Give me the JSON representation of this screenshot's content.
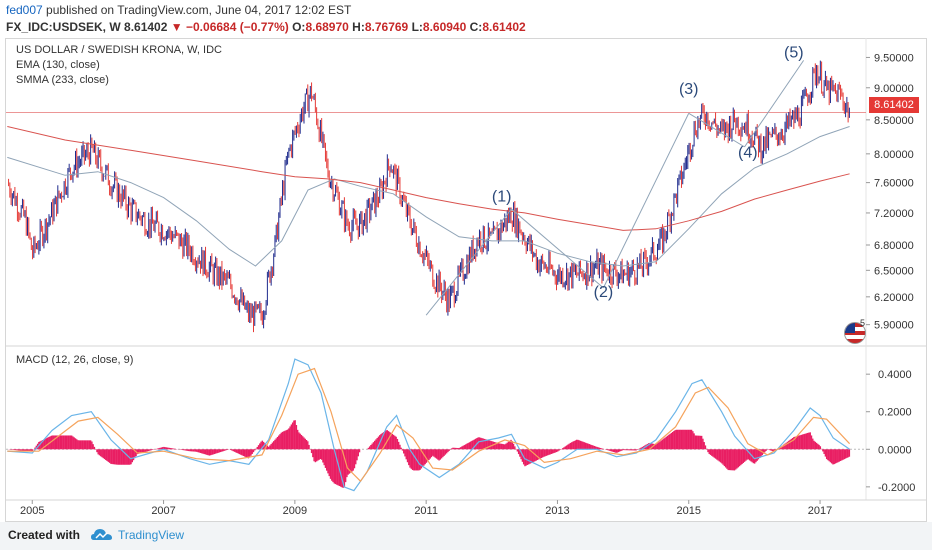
{
  "header": {
    "author": "fed007",
    "published_text": "published on TradingView.com, June 04, 2017 12:02 EST",
    "symbol": "FX_IDC:USDSEK, W",
    "last": "8.61402",
    "change": "−0.06684 (−0.77%)",
    "o_label": "O:",
    "o_value": "8.68970",
    "h_label": "H:",
    "h_value": "8.76769",
    "l_label": "L:",
    "l_value": "8.60940",
    "c_label": "C:",
    "c_value": "8.61402"
  },
  "legend": {
    "series_title": "US DOLLAR / SWEDISH KRONA, W, IDC",
    "ema": "EMA (130, close)",
    "smma": "SMMA (233, close)",
    "macd": "MACD (12, 26, close, 9)"
  },
  "price_box": "8.61402",
  "flag_badge": "5",
  "footer": {
    "created_with": "Created with",
    "brand": "TradingView"
  },
  "colors": {
    "up_candle": "#1e2a8c",
    "down_candle": "#e53935",
    "ema_line": "#90a4b7",
    "smma_line": "#d9534f",
    "macd_line": "#6bb5e8",
    "signal_line": "#f5a35c",
    "histogram": "#e91e63",
    "wave_line": "#90a4b7",
    "wave_label": "#2c4a7a"
  },
  "chart_data": [
    {
      "type": "candlestick",
      "title": "US DOLLAR / SWEDISH KRONA, W, IDC",
      "x_ticks": [
        "2005",
        "2007",
        "2009",
        "2011",
        "2013",
        "2015",
        "2017"
      ],
      "y_ticks": [
        "5.90000",
        "6.20000",
        "6.50000",
        "6.80000",
        "7.20000",
        "7.60000",
        "8.00000",
        "8.50000",
        "9.00000",
        "9.50000"
      ],
      "y_scale": "log",
      "ylim": [
        5.7,
        9.8
      ],
      "xlim": [
        2004.6,
        2017.7
      ],
      "close_path": [
        [
          2004.62,
          7.6
        ],
        [
          2004.9,
          7.1
        ],
        [
          2005.0,
          6.7
        ],
        [
          2005.3,
          7.2
        ],
        [
          2005.6,
          7.8
        ],
        [
          2005.9,
          8.05
        ],
        [
          2006.2,
          7.6
        ],
        [
          2006.5,
          7.25
        ],
        [
          2006.8,
          7.05
        ],
        [
          2007.0,
          7.0
        ],
        [
          2007.4,
          6.75
        ],
        [
          2007.8,
          6.45
        ],
        [
          2008.0,
          6.35
        ],
        [
          2008.3,
          6.0
        ],
        [
          2008.5,
          6.0
        ],
        [
          2008.7,
          6.8
        ],
        [
          2008.9,
          8.0
        ],
        [
          2009.1,
          8.6
        ],
        [
          2009.25,
          8.95
        ],
        [
          2009.5,
          7.75
        ],
        [
          2009.8,
          7.05
        ],
        [
          2010.0,
          7.05
        ],
        [
          2010.3,
          7.45
        ],
        [
          2010.45,
          7.9
        ],
        [
          2010.7,
          7.2
        ],
        [
          2010.9,
          6.8
        ],
        [
          2011.1,
          6.45
        ],
        [
          2011.35,
          6.15
        ],
        [
          2011.6,
          6.55
        ],
        [
          2011.8,
          6.9
        ],
        [
          2012.0,
          6.85
        ],
        [
          2012.3,
          7.2
        ],
        [
          2012.5,
          6.9
        ],
        [
          2012.7,
          6.6
        ],
        [
          2013.0,
          6.45
        ],
        [
          2013.3,
          6.45
        ],
        [
          2013.6,
          6.55
        ],
        [
          2013.8,
          6.5
        ],
        [
          2014.0,
          6.45
        ],
        [
          2014.3,
          6.55
        ],
        [
          2014.6,
          6.85
        ],
        [
          2014.9,
          7.7
        ],
        [
          2015.1,
          8.4
        ],
        [
          2015.25,
          8.6
        ],
        [
          2015.5,
          8.3
        ],
        [
          2015.7,
          8.5
        ],
        [
          2015.9,
          8.4
        ],
        [
          2016.1,
          8.1
        ],
        [
          2016.3,
          8.25
        ],
        [
          2016.5,
          8.4
        ],
        [
          2016.7,
          8.6
        ],
        [
          2016.95,
          9.3
        ],
        [
          2017.1,
          8.95
        ],
        [
          2017.3,
          8.9
        ],
        [
          2017.45,
          8.61
        ]
      ]
    },
    {
      "type": "line",
      "title": "EMA (130, close)",
      "points": [
        [
          2004.62,
          7.95
        ],
        [
          2005.5,
          7.7
        ],
        [
          2006.0,
          7.75
        ],
        [
          2006.5,
          7.6
        ],
        [
          2007.0,
          7.4
        ],
        [
          2007.5,
          7.1
        ],
        [
          2008.0,
          6.75
        ],
        [
          2008.4,
          6.55
        ],
        [
          2008.8,
          6.85
        ],
        [
          2009.2,
          7.5
        ],
        [
          2009.6,
          7.65
        ],
        [
          2010.0,
          7.55
        ],
        [
          2010.5,
          7.45
        ],
        [
          2011.0,
          7.15
        ],
        [
          2011.5,
          6.9
        ],
        [
          2012.0,
          6.85
        ],
        [
          2012.5,
          6.85
        ],
        [
          2013.0,
          6.7
        ],
        [
          2013.5,
          6.6
        ],
        [
          2014.0,
          6.55
        ],
        [
          2014.5,
          6.6
        ],
        [
          2015.0,
          7.0
        ],
        [
          2015.5,
          7.45
        ],
        [
          2016.0,
          7.8
        ],
        [
          2016.5,
          8.0
        ],
        [
          2017.0,
          8.25
        ],
        [
          2017.45,
          8.4
        ]
      ]
    },
    {
      "type": "line",
      "title": "SMMA (233, close)",
      "points": [
        [
          2004.62,
          8.4
        ],
        [
          2005.5,
          8.2
        ],
        [
          2006.5,
          8.05
        ],
        [
          2007.5,
          7.9
        ],
        [
          2008.5,
          7.75
        ],
        [
          2009.0,
          7.68
        ],
        [
          2009.5,
          7.65
        ],
        [
          2010.0,
          7.6
        ],
        [
          2010.5,
          7.5
        ],
        [
          2011.0,
          7.4
        ],
        [
          2011.5,
          7.32
        ],
        [
          2012.0,
          7.25
        ],
        [
          2012.5,
          7.2
        ],
        [
          2013.0,
          7.12
        ],
        [
          2013.5,
          7.05
        ],
        [
          2014.0,
          6.98
        ],
        [
          2014.5,
          7.0
        ],
        [
          2015.0,
          7.1
        ],
        [
          2015.5,
          7.22
        ],
        [
          2016.0,
          7.38
        ],
        [
          2016.5,
          7.5
        ],
        [
          2017.0,
          7.62
        ],
        [
          2017.45,
          7.72
        ]
      ]
    },
    {
      "type": "annotation",
      "title": "Wave count",
      "labels": [
        {
          "text": "(1)",
          "x": 2012.15,
          "y": 7.35
        },
        {
          "text": "(2)",
          "x": 2013.7,
          "y": 6.2
        },
        {
          "text": "(3)",
          "x": 2015.0,
          "y": 8.9
        },
        {
          "text": "(4)",
          "x": 2015.9,
          "y": 7.95
        },
        {
          "text": "(5)",
          "x": 2016.6,
          "y": 9.5
        }
      ],
      "lines": [
        [
          [
            2011.0,
            6.0
          ],
          [
            2012.3,
            7.25
          ]
        ],
        [
          [
            2012.3,
            7.25
          ],
          [
            2013.7,
            6.3
          ]
        ],
        [
          [
            2013.7,
            6.3
          ],
          [
            2015.0,
            8.6
          ]
        ],
        [
          [
            2015.0,
            8.6
          ],
          [
            2015.85,
            8.1
          ]
        ],
        [
          [
            2015.85,
            8.1
          ],
          [
            2016.75,
            9.45
          ]
        ]
      ]
    },
    {
      "type": "line",
      "title": "MACD (12, 26, close, 9)",
      "y_ticks": [
        "0.4000",
        "0.2000",
        "0.0000",
        "-0.2000"
      ],
      "ylim": [
        -0.27,
        0.55
      ],
      "macd_points": [
        [
          2004.62,
          -0.01
        ],
        [
          2005.0,
          -0.02
        ],
        [
          2005.3,
          0.1
        ],
        [
          2005.6,
          0.18
        ],
        [
          2005.9,
          0.2
        ],
        [
          2006.2,
          0.05
        ],
        [
          2006.5,
          -0.05
        ],
        [
          2006.8,
          -0.02
        ],
        [
          2007.0,
          0.0
        ],
        [
          2007.4,
          -0.05
        ],
        [
          2007.7,
          -0.08
        ],
        [
          2008.0,
          -0.06
        ],
        [
          2008.3,
          -0.08
        ],
        [
          2008.6,
          0.05
        ],
        [
          2008.9,
          0.35
        ],
        [
          2009.0,
          0.48
        ],
        [
          2009.2,
          0.45
        ],
        [
          2009.4,
          0.3
        ],
        [
          2009.6,
          0.0
        ],
        [
          2009.75,
          -0.2
        ],
        [
          2009.9,
          -0.22
        ],
        [
          2010.1,
          -0.12
        ],
        [
          2010.4,
          0.12
        ],
        [
          2010.55,
          0.18
        ],
        [
          2010.75,
          0.0
        ],
        [
          2010.9,
          -0.08
        ],
        [
          2011.2,
          -0.15
        ],
        [
          2011.5,
          -0.08
        ],
        [
          2011.8,
          0.04
        ],
        [
          2012.1,
          0.06
        ],
        [
          2012.3,
          0.08
        ],
        [
          2012.5,
          -0.05
        ],
        [
          2012.8,
          -0.1
        ],
        [
          2013.0,
          -0.07
        ],
        [
          2013.3,
          0.0
        ],
        [
          2013.6,
          0.0
        ],
        [
          2013.9,
          -0.04
        ],
        [
          2014.2,
          -0.02
        ],
        [
          2014.5,
          0.05
        ],
        [
          2014.8,
          0.2
        ],
        [
          2015.05,
          0.35
        ],
        [
          2015.2,
          0.37
        ],
        [
          2015.5,
          0.2
        ],
        [
          2015.7,
          0.07
        ],
        [
          2016.0,
          -0.05
        ],
        [
          2016.3,
          -0.02
        ],
        [
          2016.6,
          0.1
        ],
        [
          2016.85,
          0.22
        ],
        [
          2017.0,
          0.18
        ],
        [
          2017.2,
          0.06
        ],
        [
          2017.45,
          0.0
        ]
      ],
      "signal_points": [
        [
          2004.62,
          -0.01
        ],
        [
          2005.1,
          -0.01
        ],
        [
          2005.4,
          0.07
        ],
        [
          2005.7,
          0.15
        ],
        [
          2006.0,
          0.17
        ],
        [
          2006.3,
          0.08
        ],
        [
          2006.6,
          -0.02
        ],
        [
          2007.0,
          -0.01
        ],
        [
          2007.5,
          -0.05
        ],
        [
          2008.0,
          -0.06
        ],
        [
          2008.5,
          -0.03
        ],
        [
          2008.8,
          0.18
        ],
        [
          2009.05,
          0.4
        ],
        [
          2009.3,
          0.43
        ],
        [
          2009.55,
          0.2
        ],
        [
          2009.8,
          -0.1
        ],
        [
          2010.0,
          -0.17
        ],
        [
          2010.3,
          -0.02
        ],
        [
          2010.55,
          0.13
        ],
        [
          2010.8,
          0.06
        ],
        [
          2011.1,
          -0.1
        ],
        [
          2011.4,
          -0.11
        ],
        [
          2011.8,
          -0.01
        ],
        [
          2012.2,
          0.05
        ],
        [
          2012.5,
          0.02
        ],
        [
          2012.8,
          -0.07
        ],
        [
          2013.2,
          -0.05
        ],
        [
          2013.6,
          -0.01
        ],
        [
          2014.0,
          -0.03
        ],
        [
          2014.4,
          0.0
        ],
        [
          2014.8,
          0.12
        ],
        [
          2015.1,
          0.3
        ],
        [
          2015.3,
          0.33
        ],
        [
          2015.6,
          0.22
        ],
        [
          2015.9,
          0.03
        ],
        [
          2016.2,
          -0.03
        ],
        [
          2016.6,
          0.05
        ],
        [
          2016.9,
          0.17
        ],
        [
          2017.1,
          0.16
        ],
        [
          2017.45,
          0.03
        ]
      ]
    }
  ]
}
